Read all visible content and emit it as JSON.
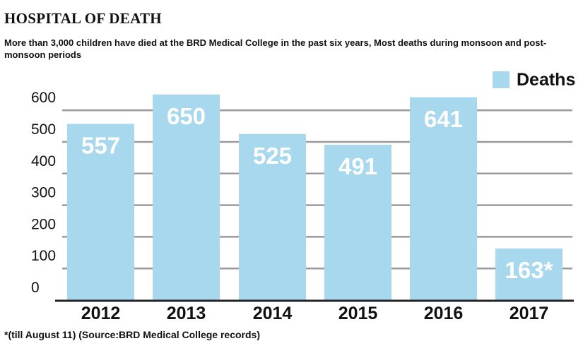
{
  "chart_data": {
    "type": "bar",
    "title": "HOSPITAL OF DEATH",
    "subtitle": "More than 3,000 children have died at the BRD Medical College in the past six years, Most deaths during monsoon and post-monsoon periods",
    "categories": [
      "2012",
      "2013",
      "2014",
      "2015",
      "2016",
      "2017"
    ],
    "series": [
      {
        "name": "Deaths",
        "values": [
          557,
          650,
          525,
          491,
          641,
          163
        ]
      }
    ],
    "data_labels": [
      "557",
      "650",
      "525",
      "491",
      "641",
      "163*"
    ],
    "yticks": [
      "0",
      "100",
      "200",
      "300",
      "400",
      "500",
      "600"
    ],
    "ylim": [
      0,
      650
    ],
    "grid": true,
    "legend": "top-right",
    "bar_color": "#a8d8ed",
    "footnote": "*(till August 11)  (Source:BRD Medical College records)"
  }
}
